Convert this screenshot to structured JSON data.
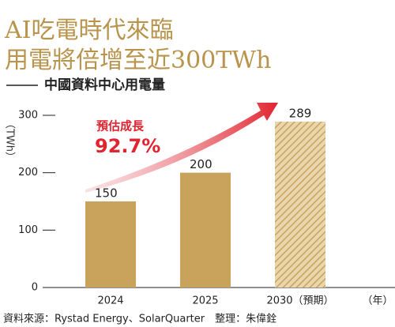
{
  "chart_data": {
    "type": "bar",
    "title": [
      "AI吃電時代來臨",
      "用電將倍增至近300TWh"
    ],
    "subtitle": "中國資料中心用電量",
    "y_label": "（TWh）",
    "x_unit": "（年）",
    "categories": [
      "2024",
      "2025",
      "2030（預期）"
    ],
    "values": [
      150,
      200,
      289
    ],
    "bar_fills": [
      "solid",
      "solid",
      "hatched"
    ],
    "color": "#c9a35c",
    "ylim": [
      0,
      300
    ],
    "yticks": [
      0,
      100,
      200,
      300
    ],
    "annotation": [
      "預估成長",
      "92.7%"
    ],
    "source": "資料來源：Rystad Energy、SolarQuarter　整理：朱偉銓"
  }
}
